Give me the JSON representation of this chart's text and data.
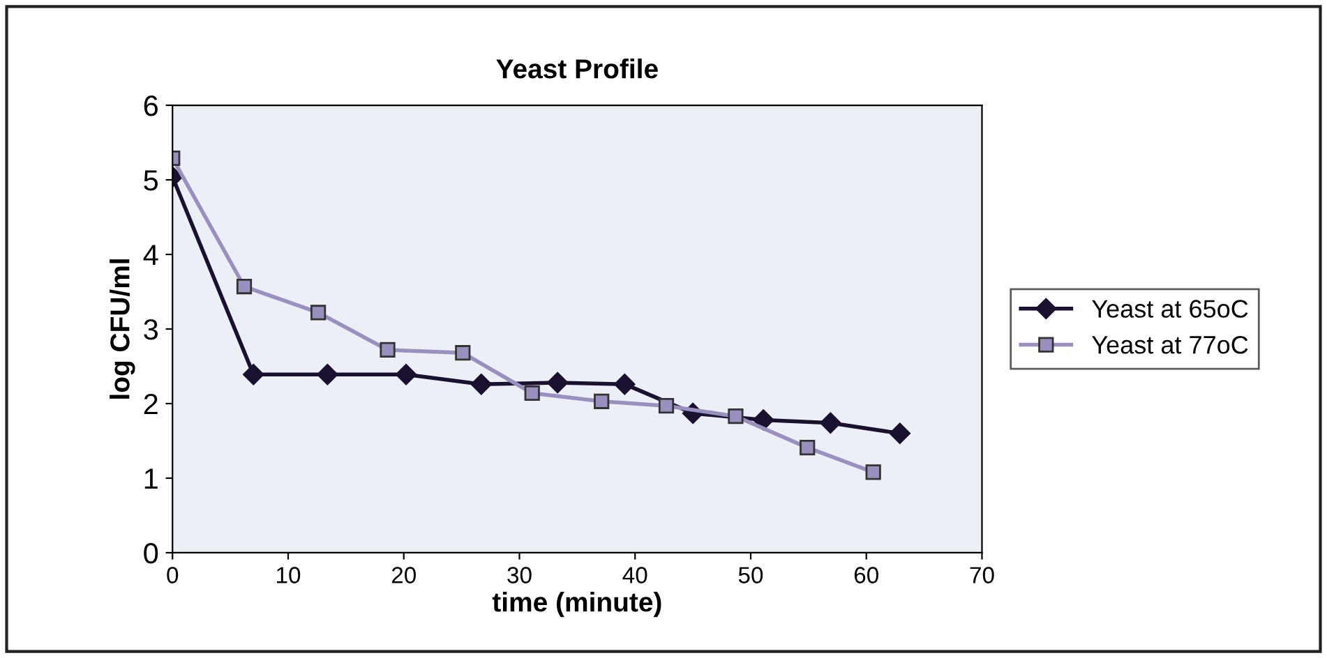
{
  "chart_data": {
    "type": "line",
    "title": "Yeast Profile",
    "xlabel": "time (minute)",
    "ylabel": "log CFU/ml",
    "xlim": [
      0,
      70
    ],
    "xticks": [
      0,
      10,
      20,
      30,
      40,
      50,
      60,
      70
    ],
    "ylim": [
      0,
      6
    ],
    "yticks": [
      0,
      1,
      2,
      3,
      4,
      5,
      6
    ],
    "grid": false,
    "legend": "right",
    "series": [
      {
        "name": "Yeast at 65oC",
        "color": "#1a1030",
        "marker": "diamond",
        "x": [
          0,
          7,
          13.4,
          20.2,
          26.7,
          33.3,
          39.1,
          45,
          51.1,
          56.9,
          62.9
        ],
        "values": [
          5.04,
          2.39,
          2.39,
          2.39,
          2.26,
          2.28,
          2.26,
          1.87,
          1.78,
          1.74,
          1.6
        ]
      },
      {
        "name": "Yeast at 77oC",
        "color": "#9a90c0",
        "marker": "square",
        "x": [
          0,
          6.2,
          12.6,
          18.6,
          25.1,
          31.1,
          37.1,
          42.7,
          48.7,
          54.9,
          60.6
        ],
        "values": [
          5.29,
          3.57,
          3.22,
          2.72,
          2.68,
          2.14,
          2.03,
          1.97,
          1.83,
          1.41,
          1.08
        ]
      }
    ]
  }
}
